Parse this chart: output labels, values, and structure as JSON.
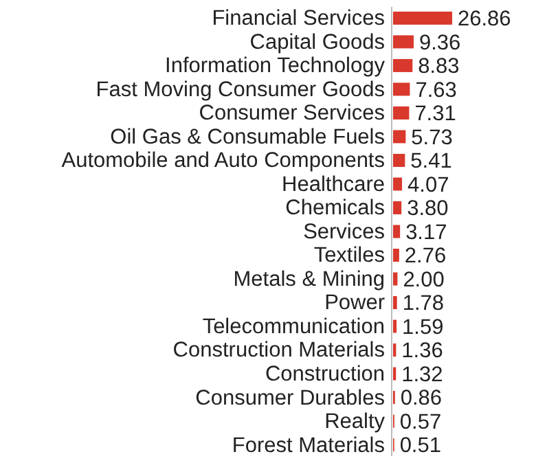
{
  "chart_data": {
    "type": "bar",
    "orientation": "horizontal",
    "categories": [
      "Financial Services",
      "Capital Goods",
      "Information Technology",
      "Fast Moving Consumer Goods",
      "Consumer Services",
      "Oil Gas & Consumable Fuels",
      "Automobile and Auto Components",
      "Healthcare",
      "Chemicals",
      "Services",
      "Textiles",
      "Metals & Mining",
      "Power",
      "Telecommunication",
      "Construction Materials",
      "Construction",
      "Consumer Durables",
      "Realty",
      "Forest Materials"
    ],
    "values": [
      26.86,
      9.36,
      8.83,
      7.63,
      7.31,
      5.73,
      5.41,
      4.07,
      3.8,
      3.17,
      2.76,
      2.0,
      1.78,
      1.59,
      1.36,
      1.32,
      0.86,
      0.57,
      0.51
    ],
    "value_labels": [
      "26.86",
      "9.36",
      "8.83",
      "7.63",
      "7.31",
      "5.73",
      "5.41",
      "4.07",
      "3.80",
      "3.17",
      "2.76",
      "2.00",
      "1.78",
      "1.59",
      "1.36",
      "1.32",
      "0.86",
      "0.57",
      "0.51"
    ],
    "color": "#d9382c"
  }
}
